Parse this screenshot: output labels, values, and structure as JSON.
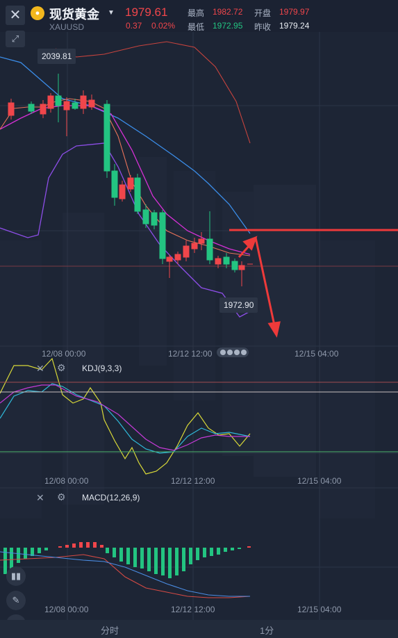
{
  "header": {
    "name": "现货黄金",
    "symbol": "XAUUSD",
    "price": "1979.61",
    "change": "0.37",
    "change_pct": "0.02%",
    "high_label": "最高",
    "high": "1982.72",
    "open_label": "开盘",
    "open": "1979.97",
    "low_label": "最低",
    "low": "1972.95",
    "prev_close_label": "昨收",
    "prev_close": "1979.24"
  },
  "main_chart": {
    "high_tag": "2039.81",
    "low_tag": "1972.90",
    "x_labels": [
      "12/08 00:00",
      "12/12 12:00",
      "12/15 04:00"
    ]
  },
  "kdj": {
    "title": "KDJ(9,3,3)",
    "x_labels": [
      "12/08 00:00",
      "12/12 12:00",
      "12/15 04:00"
    ]
  },
  "macd": {
    "title": "MACD(12,26,9)",
    "x_labels": [
      "12/08 00:00",
      "12/12 12:00",
      "12/15 04:00"
    ]
  },
  "tabs": [
    "分时",
    "1分"
  ],
  "icons": {
    "close": "close-icon",
    "expand": "expand-icon",
    "coin": "gold-coin-icon",
    "settings": "gear-icon",
    "candles": "candlestick-icon",
    "pen": "pen-icon",
    "indicator": "indicator-icon"
  },
  "colors": {
    "up": "#f0464b",
    "down": "#23c481",
    "background": "#1d2535"
  }
}
